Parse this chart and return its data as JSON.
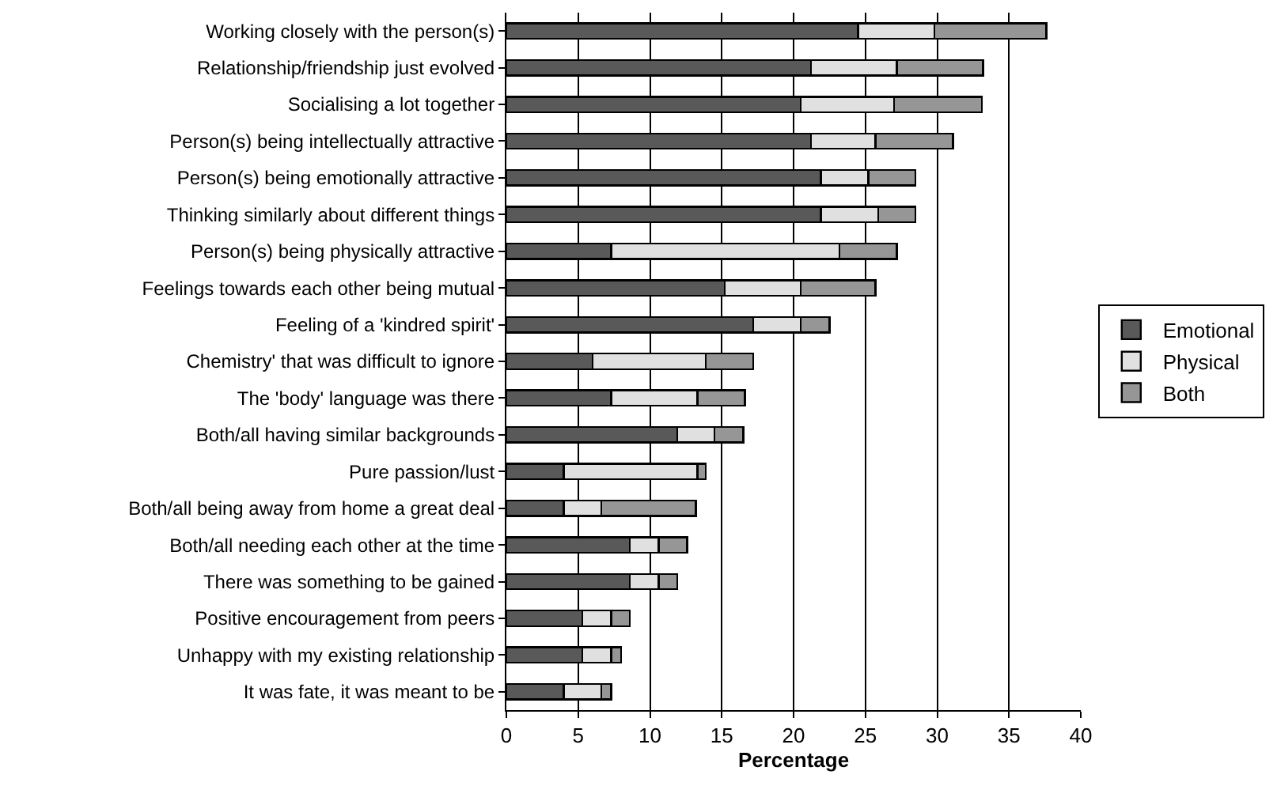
{
  "chart_data": {
    "type": "bar",
    "orientation": "horizontal",
    "stacked": true,
    "xlabel": "Percentage",
    "categories": [
      "Working closely with the person(s)",
      "Relationship/friendship just evolved",
      "Socialising a lot together",
      "Person(s) being intellectually attractive",
      "Person(s) being emotionally attractive",
      "Thinking similarly about different things",
      "Person(s) being physically attractive",
      "Feelings towards each other being mutual",
      "Feeling of a 'kindred spirit'",
      "Chemistry' that was difficult to ignore",
      "The 'body' language was there",
      "Both/all having similar backgrounds",
      "Pure passion/lust",
      "Both/all being away from home a great deal",
      "Both/all needing each other at the time",
      "There was something to be gained",
      "Positive encouragement from peers",
      "Unhappy with my existing relationship",
      "It was fate, it was meant to be"
    ],
    "series": [
      {
        "name": "Emotional",
        "color": "#595959",
        "values": [
          24.5,
          21.2,
          20.5,
          21.2,
          21.9,
          21.9,
          7.3,
          15.2,
          17.2,
          6.0,
          7.3,
          11.9,
          4.0,
          4.0,
          8.6,
          8.6,
          5.3,
          5.3,
          4.0
        ]
      },
      {
        "name": "Physical",
        "color": "#e0e0e0",
        "values": [
          5.3,
          6.0,
          6.5,
          4.5,
          3.3,
          4.0,
          15.9,
          5.3,
          3.3,
          7.9,
          6.0,
          2.6,
          9.3,
          2.6,
          2.0,
          2.0,
          2.0,
          2.0,
          2.6
        ]
      },
      {
        "name": "Both",
        "color": "#969696",
        "values": [
          7.8,
          6.0,
          6.1,
          5.4,
          3.3,
          2.6,
          4.0,
          5.2,
          2.0,
          3.3,
          3.3,
          2.0,
          0.6,
          6.6,
          2.0,
          1.3,
          1.3,
          0.7,
          0.7
        ]
      }
    ],
    "xlim": [
      0,
      40
    ],
    "xticks": [
      0,
      5,
      10,
      15,
      20,
      25,
      30,
      35,
      40
    ],
    "grid": "x",
    "legend": "right"
  }
}
